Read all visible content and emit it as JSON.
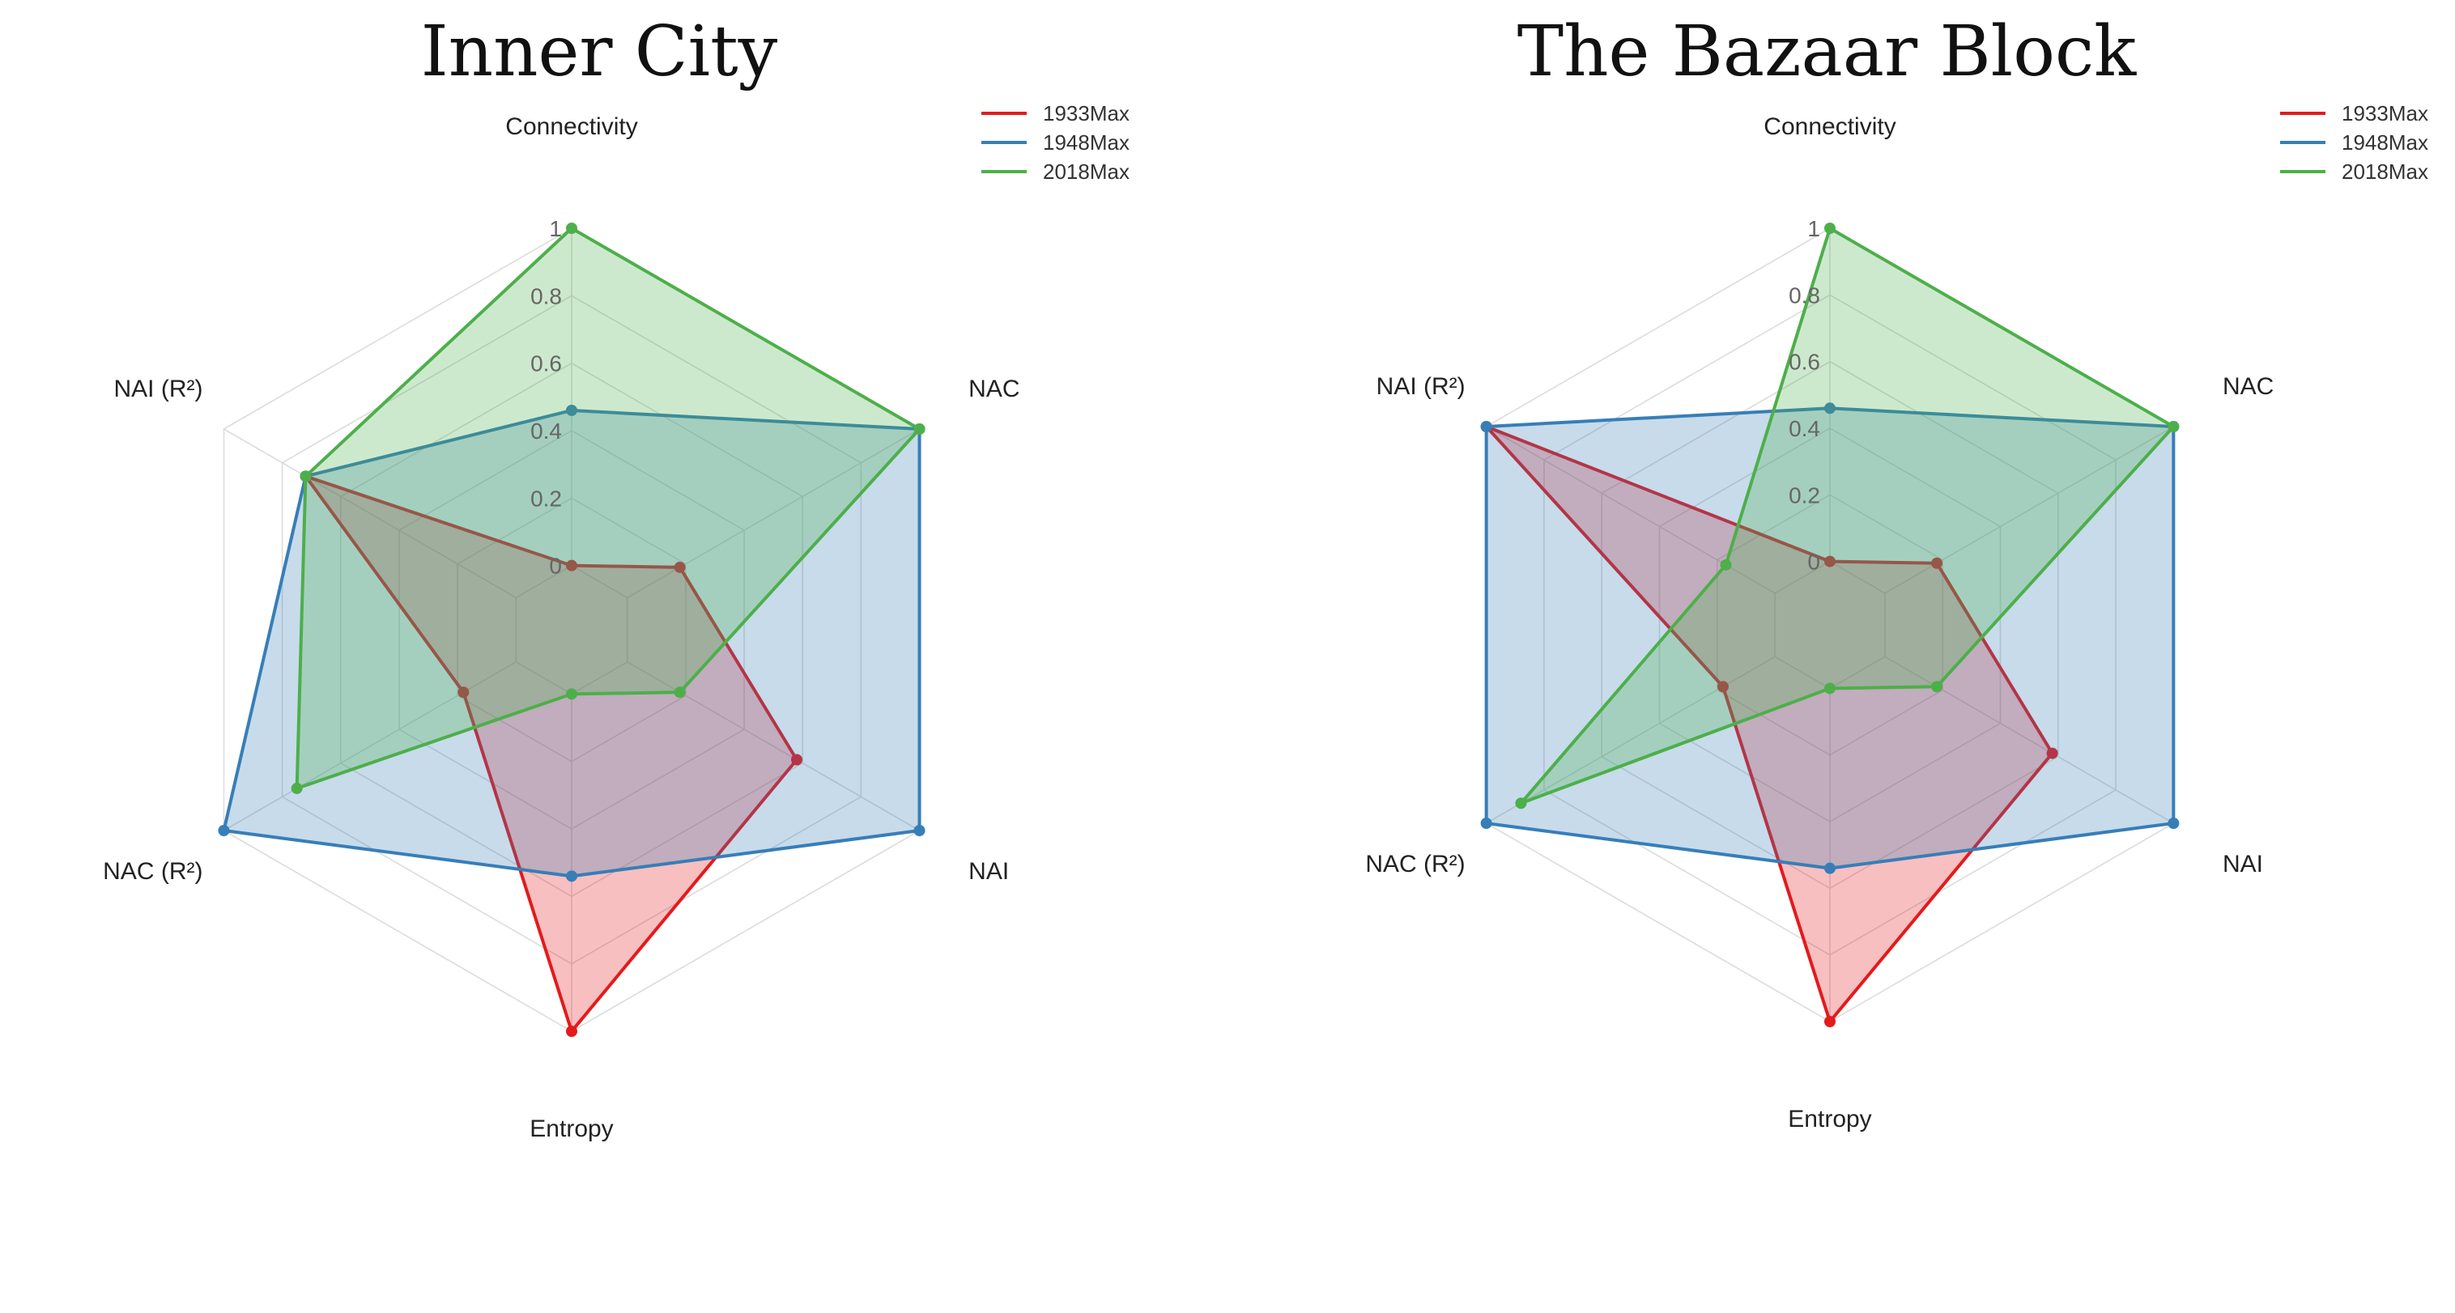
{
  "chart_data": [
    {
      "type": "radar",
      "title": "Inner City",
      "axes": [
        "Connectivity",
        "NAC",
        "NAI",
        "Entropy",
        "NAC (R²)",
        "NAI (R²)"
      ],
      "ticks": [
        "0",
        "0.2",
        "0.4",
        "0.6",
        "0.8",
        "1"
      ],
      "range": [
        0,
        1
      ],
      "legend_position": "top-right",
      "series": [
        {
          "name": "1933Max",
          "color": "#e41a1c",
          "values": [
            0.0,
            0.18,
            0.58,
            1.0,
            0.18,
            0.72
          ]
        },
        {
          "name": "1948Max",
          "color": "#377eb8",
          "values": [
            0.46,
            1.0,
            1.0,
            0.54,
            1.0,
            0.72
          ]
        },
        {
          "name": "2018Max",
          "color": "#4daf4a",
          "values": [
            1.0,
            1.0,
            0.18,
            0.0,
            0.75,
            0.72
          ]
        }
      ]
    },
    {
      "type": "radar",
      "title": "The Bazaar Block",
      "axes": [
        "Connectivity",
        "NAC",
        "NAI",
        "Entropy",
        "NAC (R²)",
        "NAI (R²)"
      ],
      "ticks": [
        "0",
        "0.2",
        "0.4",
        "0.6",
        "0.8",
        "1"
      ],
      "range": [
        0,
        1
      ],
      "legend_position": "top-right",
      "series": [
        {
          "name": "1933Max",
          "color": "#e41a1c",
          "values": [
            0.0,
            0.18,
            0.58,
            1.0,
            0.18,
            1.0
          ]
        },
        {
          "name": "1948Max",
          "color": "#377eb8",
          "values": [
            0.46,
            1.0,
            1.0,
            0.54,
            1.0,
            1.0
          ]
        },
        {
          "name": "2018Max",
          "color": "#4daf4a",
          "values": [
            1.0,
            1.0,
            0.18,
            0.0,
            0.88,
            0.17
          ]
        }
      ]
    }
  ]
}
